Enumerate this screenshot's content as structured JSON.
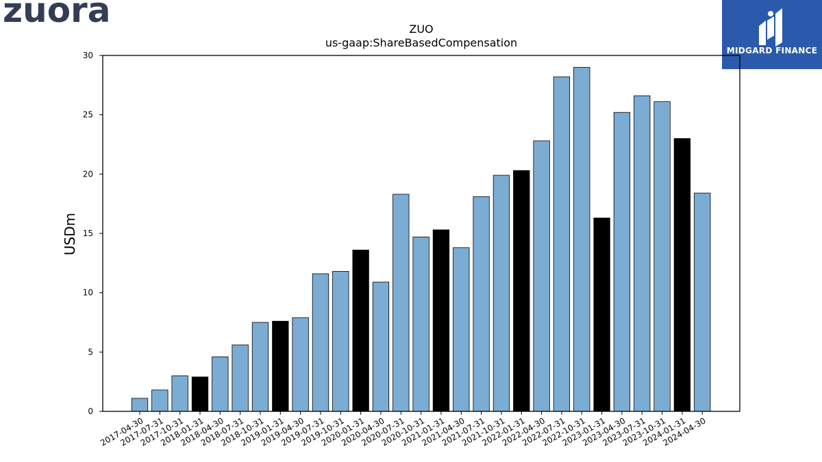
{
  "header": {
    "logo_text": "zuora",
    "brand_name": "MIDGARD FINANCE"
  },
  "colors": {
    "bar_default": "#7bacd4",
    "bar_highlight": "#000000",
    "logo": "#333d54",
    "brand_bg": "#2b5aac"
  },
  "chart_data": {
    "type": "bar",
    "title": "ZUO",
    "subtitle": "us-gaap:ShareBasedCompensation",
    "ylabel": "USDm",
    "xlabel": "",
    "ylim": [
      0,
      30
    ],
    "yticks": [
      0,
      5,
      10,
      15,
      20,
      25,
      30
    ],
    "grid": false,
    "categories": [
      "2017-04-30",
      "2017-07-31",
      "2017-10-31",
      "2018-01-31",
      "2018-04-30",
      "2018-07-31",
      "2018-10-31",
      "2019-01-31",
      "2019-04-30",
      "2019-07-31",
      "2019-10-31",
      "2020-01-31",
      "2020-04-30",
      "2020-07-31",
      "2020-10-31",
      "2021-01-31",
      "2021-04-30",
      "2021-07-31",
      "2021-10-31",
      "2022-01-31",
      "2022-04-30",
      "2022-07-31",
      "2022-10-31",
      "2023-01-31",
      "2023-04-30",
      "2023-07-31",
      "2023-10-31",
      "2024-01-31",
      "2024-04-30"
    ],
    "values": [
      1.1,
      1.8,
      3.0,
      2.9,
      4.6,
      5.6,
      7.5,
      7.6,
      7.9,
      11.6,
      11.8,
      13.6,
      10.9,
      18.3,
      14.7,
      15.3,
      13.8,
      18.1,
      19.9,
      20.3,
      22.8,
      28.2,
      29.0,
      16.3,
      25.2,
      26.6,
      26.1,
      23.0,
      18.4
    ],
    "highlight": [
      false,
      false,
      false,
      true,
      false,
      false,
      false,
      true,
      false,
      false,
      false,
      true,
      false,
      false,
      false,
      true,
      false,
      false,
      false,
      true,
      false,
      false,
      false,
      true,
      false,
      false,
      false,
      true,
      false
    ]
  }
}
